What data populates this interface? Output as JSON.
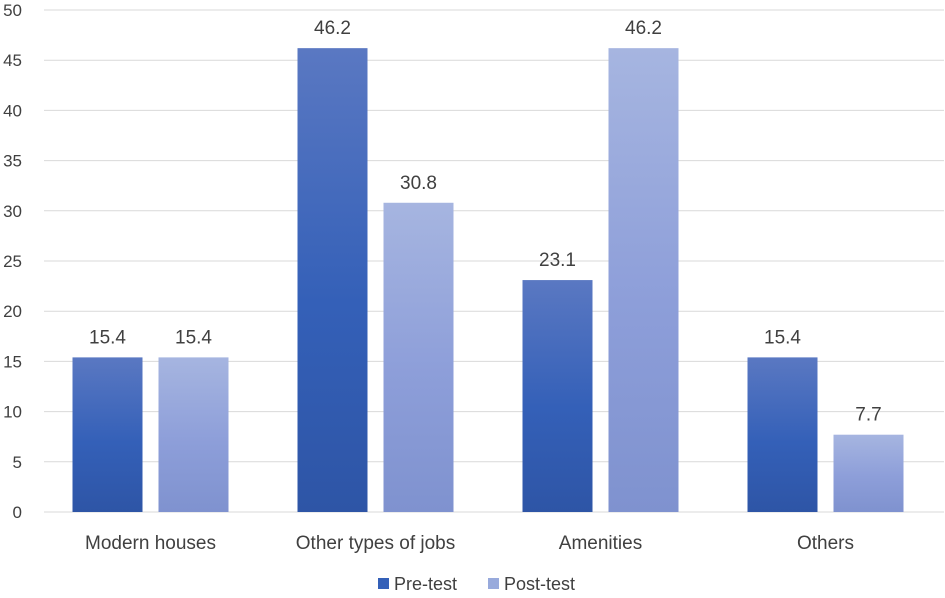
{
  "chart_data": {
    "type": "bar",
    "categories": [
      "Modern houses",
      "Other types of jobs",
      "Amenities",
      "Others"
    ],
    "series": [
      {
        "name": "Pre-test",
        "values": [
          15.4,
          46.2,
          23.1,
          15.4
        ],
        "color": "#3a5fb5",
        "color_light": "#4f73c1"
      },
      {
        "name": "Post-test",
        "values": [
          15.4,
          30.8,
          46.2,
          7.7
        ],
        "color": "#8c9fd8",
        "color_light": "#a3b4e2"
      }
    ],
    "ylim": [
      0,
      50
    ],
    "yticks": [
      0,
      5,
      10,
      15,
      20,
      25,
      30,
      35,
      40,
      45,
      50
    ],
    "grid": true,
    "legend_position": "bottom",
    "data_labels": true
  }
}
